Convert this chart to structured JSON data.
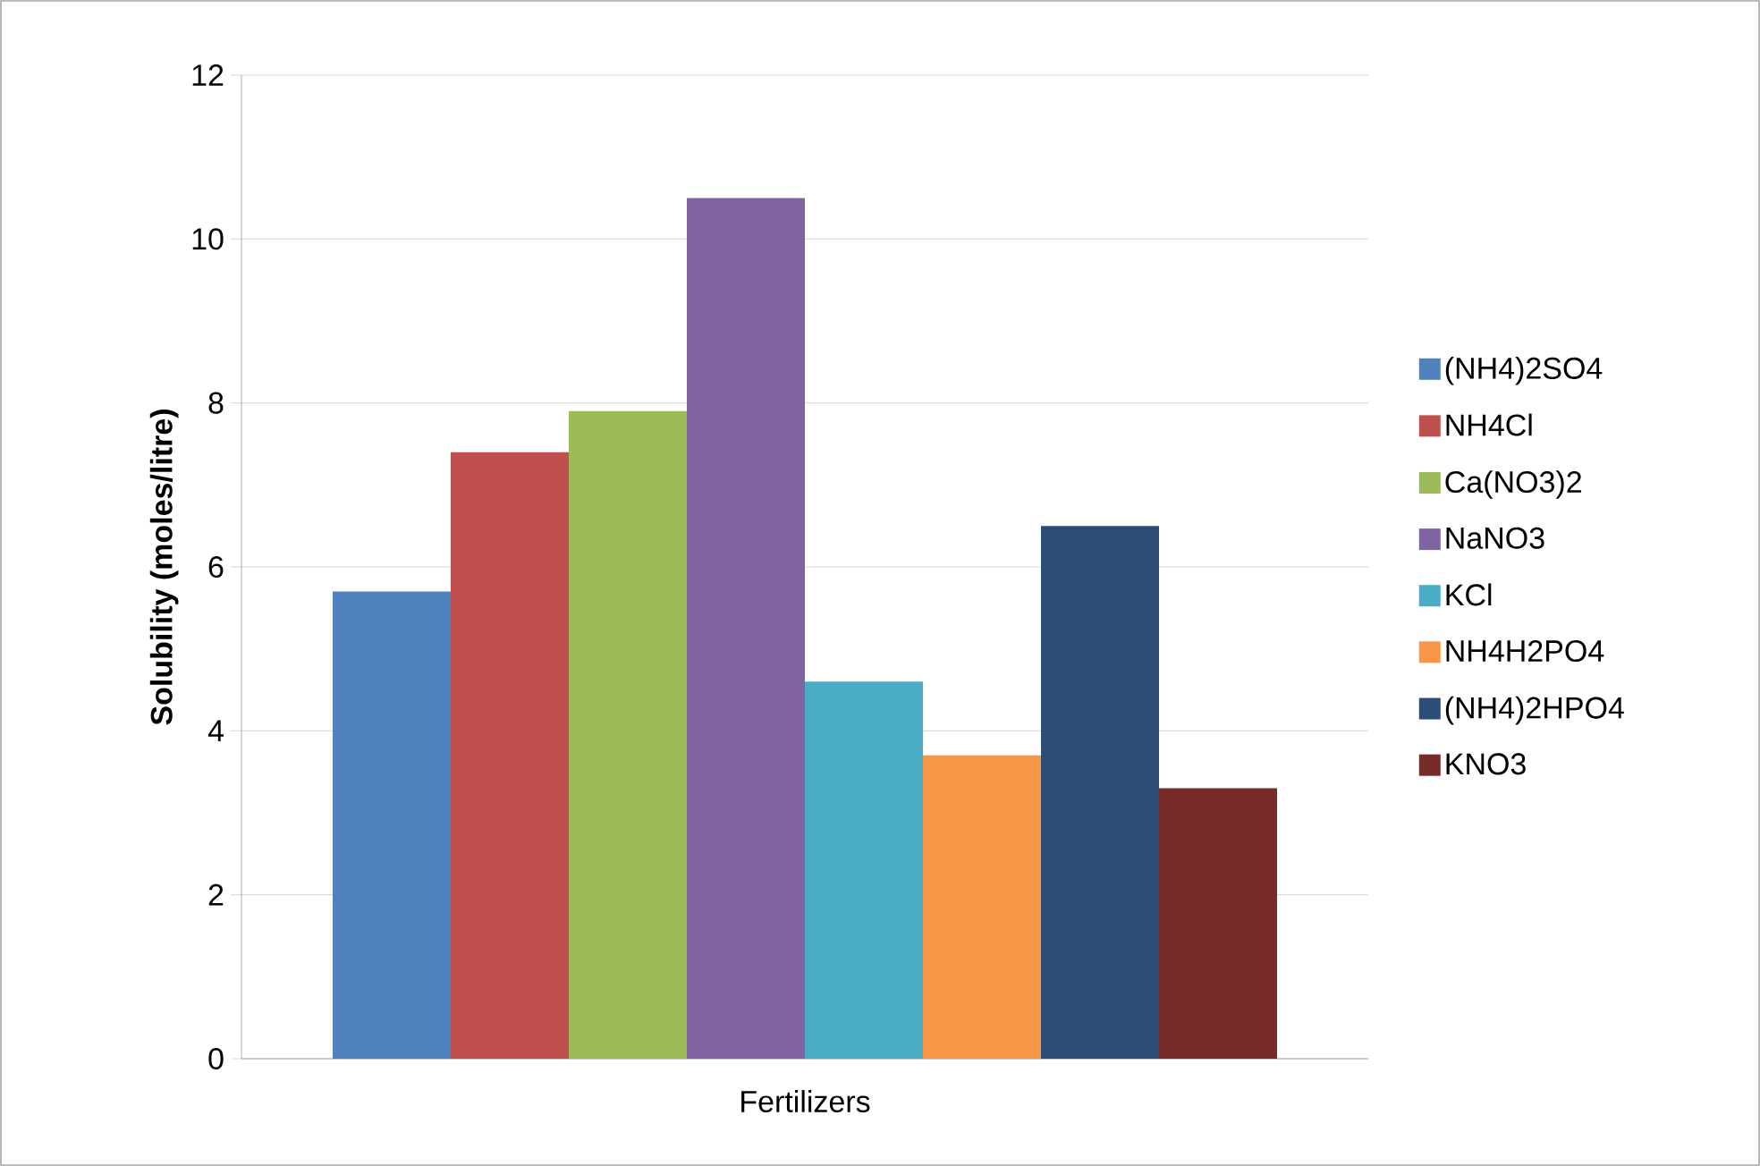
{
  "chart_data": {
    "type": "bar",
    "categories": [
      "Fertilizers"
    ],
    "ylabel": "Solubility (moles/litre)",
    "ylim": [
      0,
      12
    ],
    "yticks": [
      0,
      2,
      4,
      6,
      8,
      10,
      12
    ],
    "grid": "y",
    "legend": "right",
    "series": [
      {
        "name": "(NH4)2SO4",
        "color": "#4f81bd",
        "values": [
          5.7
        ]
      },
      {
        "name": "NH4Cl",
        "color": "#c0504d",
        "values": [
          7.4
        ]
      },
      {
        "name": "Ca(NO3)2",
        "color": "#9bbb59",
        "values": [
          7.9
        ]
      },
      {
        "name": "NaNO3",
        "color": "#8064a2",
        "values": [
          10.5
        ]
      },
      {
        "name": "KCl",
        "color": "#4bacc6",
        "values": [
          4.6
        ]
      },
      {
        "name": "NH4H2PO4",
        "color": "#f79646",
        "values": [
          3.7
        ]
      },
      {
        "name": "(NH4)2HPO4",
        "color": "#2c4d75",
        "values": [
          6.5
        ]
      },
      {
        "name": "KNO3",
        "color": "#772c2a",
        "values": [
          3.3
        ]
      }
    ]
  }
}
